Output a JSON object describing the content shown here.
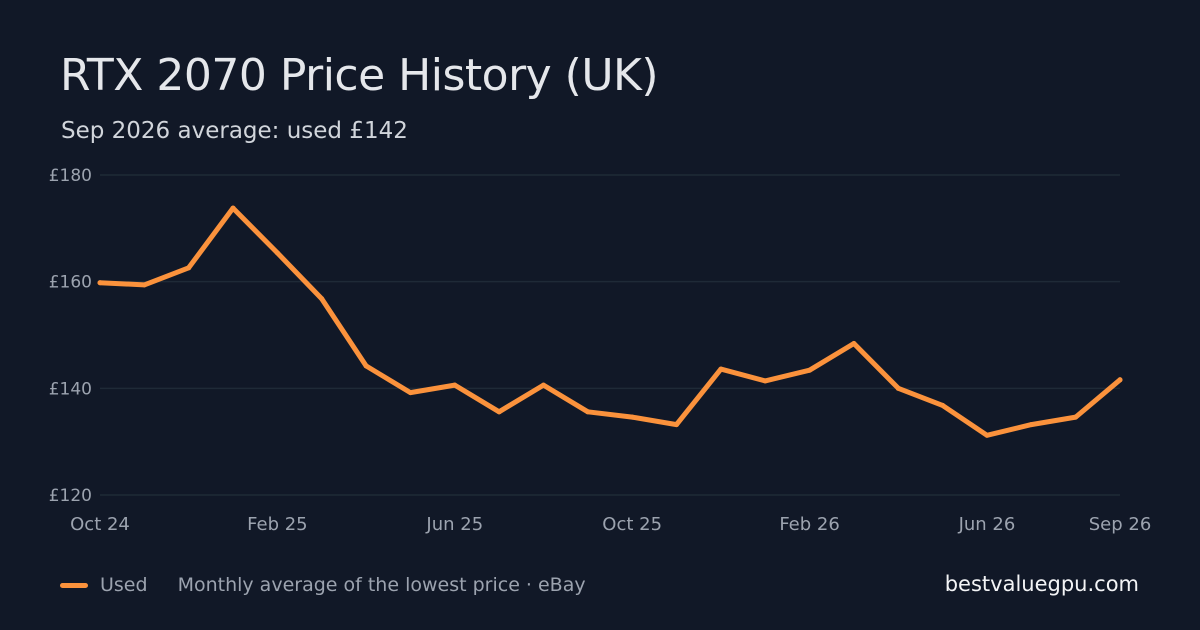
{
  "header": {
    "title": "RTX 2070 Price History (UK)",
    "subtitle": "Sep 2026 average: used £142"
  },
  "footer": {
    "legend_label": "Used",
    "source_note": "Monthly average of the lowest price · eBay",
    "brand": "bestvaluegpu.com"
  },
  "colors": {
    "background": "#111827",
    "line": "#fb923c",
    "grid": "#1f2a37",
    "tick_text": "#9ca3af"
  },
  "chart_data": {
    "type": "line",
    "title": "RTX 2070 Price History (UK)",
    "subtitle": "Sep 2026 average: used £142",
    "x": [
      "2024-10",
      "2024-11",
      "2024-12",
      "2025-01",
      "2025-02",
      "2025-03",
      "2025-04",
      "2025-05",
      "2025-06",
      "2025-07",
      "2025-08",
      "2025-09",
      "2025-10",
      "2025-11",
      "2025-12",
      "2026-01",
      "2026-02",
      "2026-03",
      "2026-04",
      "2026-05",
      "2026-06",
      "2026-07",
      "2026-08",
      "2026-09"
    ],
    "series": [
      {
        "name": "Used",
        "values": [
          159.8,
          159.4,
          162.6,
          173.8,
          165.4,
          156.8,
          144.2,
          139.2,
          140.6,
          135.6,
          140.6,
          135.6,
          134.6,
          133.2,
          143.6,
          141.4,
          143.4,
          148.4,
          140.0,
          136.8,
          131.2,
          133.2,
          134.6,
          141.6
        ]
      }
    ],
    "x_tick_labels": [
      "Oct 24",
      "Feb 25",
      "Jun 25",
      "Oct 25",
      "Feb 26",
      "Jun 26",
      "Sep 26"
    ],
    "x_tick_positions": [
      "2024-10",
      "2025-02",
      "2025-06",
      "2025-10",
      "2026-02",
      "2026-06",
      "2026-09"
    ],
    "y_ticks": [
      120,
      140,
      160,
      180
    ],
    "y_tick_labels": [
      "£120",
      "£140",
      "£160",
      "£180"
    ],
    "ylim": [
      120,
      180
    ],
    "xlabel": "",
    "ylabel": "",
    "grid": true,
    "legend_position": "bottom-left"
  }
}
